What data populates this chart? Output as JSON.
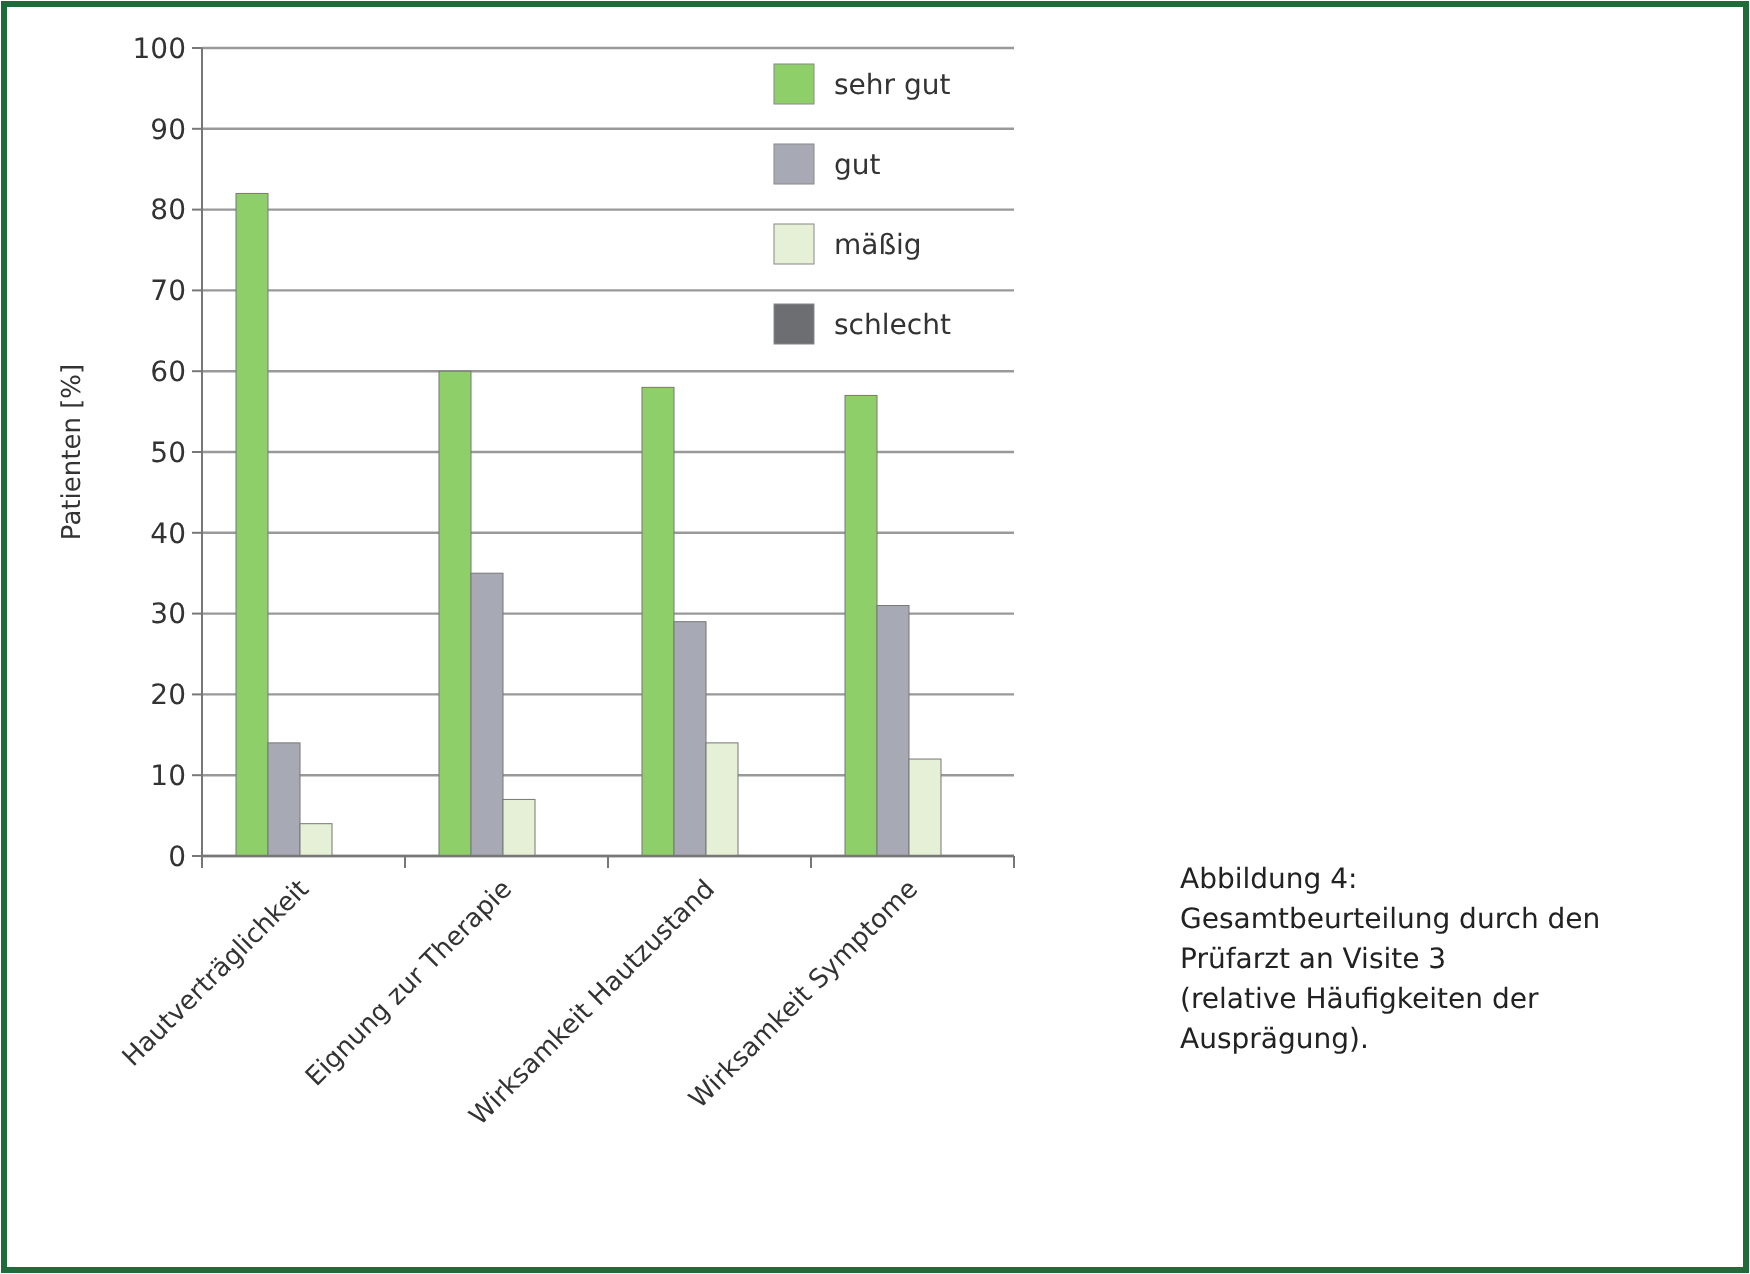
{
  "chart_data": {
    "type": "bar",
    "ylabel": "Patienten [%]",
    "categories": [
      "Hautverträglichkeit",
      "Eignung zur Therapie",
      "Wirksamkeit Hautzustand",
      "Wirksamkeit Symptome"
    ],
    "series": [
      {
        "name": "sehr gut",
        "color": "#8fcf6a",
        "values": [
          82,
          60,
          58,
          57
        ]
      },
      {
        "name": "gut",
        "color": "#a7aab4",
        "values": [
          14,
          35,
          29,
          31
        ]
      },
      {
        "name": "mäßig",
        "color": "#e6f0d6",
        "values": [
          4,
          7,
          14,
          12
        ]
      },
      {
        "name": "schlecht",
        "color": "#6d6e72",
        "values": [
          0,
          0,
          0,
          0
        ]
      }
    ],
    "ylim": [
      0,
      100
    ],
    "yticks": [
      0,
      10,
      20,
      30,
      40,
      50,
      60,
      70,
      80,
      90,
      100
    ],
    "grid": "y",
    "legend": "top right",
    "annotations": [
      "Abbildung 4: Gesamtbeurteilung durch den Prüfarzt an Visite 3 (relative Häufigkeiten der Ausprägung)."
    ]
  }
}
